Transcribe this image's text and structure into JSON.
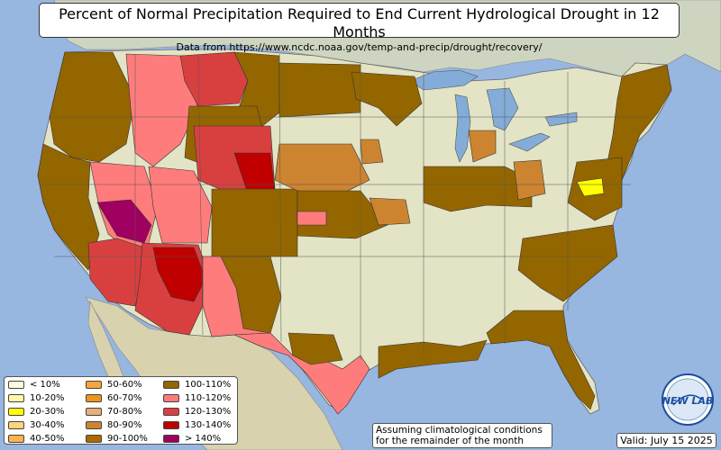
{
  "title": "Percent of Normal Precipitation Required to End Current Hydrological Drought in 12 Months",
  "subtitle": "Data from https://www.ncdc.noaa.gov/temp-and-precip/drought/recovery/",
  "legend": [
    {
      "label": "< 10%",
      "color": "#fffde0"
    },
    {
      "label": "10-20%",
      "color": "#fff8a8"
    },
    {
      "label": "20-30%",
      "color": "#ffff00"
    },
    {
      "label": "30-40%",
      "color": "#ffd27f"
    },
    {
      "label": "40-50%",
      "color": "#ffb14d"
    },
    {
      "label": "50-60%",
      "color": "#f6a538"
    },
    {
      "label": "60-70%",
      "color": "#f0941c"
    },
    {
      "label": "70-80%",
      "color": "#e6b07c"
    },
    {
      "label": "80-90%",
      "color": "#cd8431"
    },
    {
      "label": "90-100%",
      "color": "#a96a00"
    },
    {
      "label": "100-110%",
      "color": "#946600"
    },
    {
      "label": "110-120%",
      "color": "#ff7c7c"
    },
    {
      "label": "120-130%",
      "color": "#d84040"
    },
    {
      "label": "130-140%",
      "color": "#c00000"
    },
    {
      "label": "> 140%",
      "color": "#a00060"
    }
  ],
  "note": {
    "line1": "Assuming climatological conditions",
    "line2": "for the remainder of the month"
  },
  "valid": "Valid: July 15 2025",
  "logo_text": "NEW LAB",
  "colors": {
    "ocean": "#97b6e0",
    "land": "#e3e4c5",
    "mexico": "#d8d2ae",
    "canada": "#cdd4c0",
    "lake": "#84acd8"
  }
}
